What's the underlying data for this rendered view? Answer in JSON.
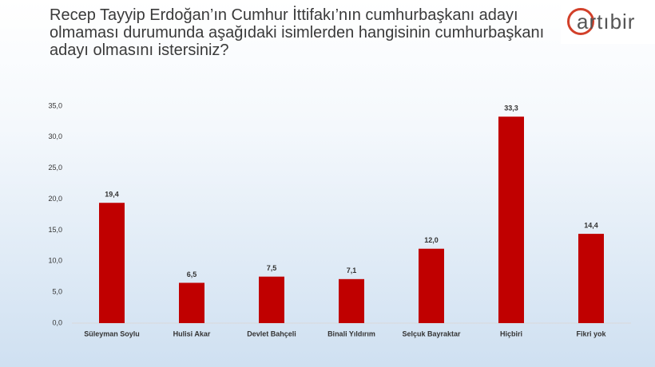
{
  "logo": "artıbir",
  "chart_data": {
    "type": "bar",
    "title": "Recep Tayyip Erdoğan’ın Cumhur İttifakı’nın cumhurbaşkanı adayı olmaması durumunda aşağıdaki isimlerden hangisinin cumhurbaşkanı adayı olmasını istersiniz?",
    "categories": [
      "Süleyman Soylu",
      "Hulisi Akar",
      "Devlet Bahçeli",
      "Binali Yıldırım",
      "Selçuk Bayraktar",
      "Hiçbiri",
      "Fikri yok"
    ],
    "values": [
      19.4,
      6.5,
      7.5,
      7.1,
      12.0,
      33.3,
      14.4
    ],
    "value_labels": [
      "19,4",
      "6,5",
      "7,5",
      "7,1",
      "12,0",
      "33,3",
      "14,4"
    ],
    "color": "#c00000",
    "ylim": [
      0,
      35
    ],
    "yticks": [
      {
        "value": 0,
        "label": "0,0"
      },
      {
        "value": 5,
        "label": "5,0"
      },
      {
        "value": 10,
        "label": "10,0"
      },
      {
        "value": 15,
        "label": "15,0"
      },
      {
        "value": 20,
        "label": "20,0"
      },
      {
        "value": 25,
        "label": "25,0"
      },
      {
        "value": 30,
        "label": "30,0"
      },
      {
        "value": 35,
        "label": "35,0"
      }
    ],
    "grid": false
  }
}
